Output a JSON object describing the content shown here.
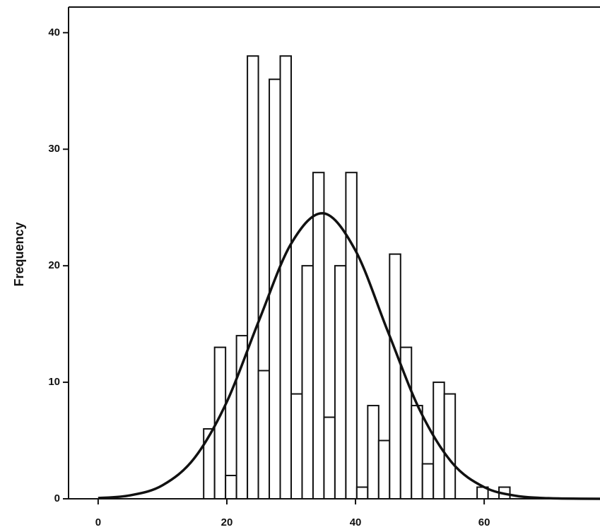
{
  "chart_data": {
    "type": "histogram",
    "y_label": "Frequency",
    "bins": [
      16.4,
      18.1,
      19.8,
      21.5,
      23.2,
      24.9,
      26.6,
      28.3,
      30.0,
      31.7,
      33.4,
      35.1,
      36.8,
      38.5,
      40.2,
      41.9,
      43.6,
      45.3,
      47.0,
      48.7,
      50.4,
      52.1,
      53.8,
      55.5,
      57.2,
      58.9,
      60.6,
      62.3,
      64.0
    ],
    "counts": [
      6,
      13,
      2,
      14,
      38,
      11,
      36,
      38,
      9,
      20,
      28,
      7,
      20,
      28,
      1,
      8,
      5,
      21,
      13,
      8,
      3,
      10,
      9,
      0,
      0,
      1,
      0,
      1
    ],
    "curve": {
      "x": [
        0,
        5,
        10,
        15,
        20,
        25,
        30,
        35,
        40,
        45,
        50,
        55,
        60,
        65,
        70,
        75,
        78
      ],
      "y": [
        0.06,
        0.3,
        1.16,
        3.52,
        8.32,
        15.3,
        21.9,
        24.5,
        21.3,
        14.4,
        7.6,
        3.1,
        1.0,
        0.25,
        0.05,
        0.01,
        0
      ]
    },
    "bar_color": "#ffffff",
    "edge_color": "#111111",
    "curve_color": "#111111",
    "xlim": [
      -4.6,
      78
    ],
    "ylim": [
      0,
      42.2
    ],
    "xticks": [
      0,
      20,
      40,
      60
    ],
    "yticks": [
      0,
      10,
      20,
      30,
      40
    ]
  }
}
